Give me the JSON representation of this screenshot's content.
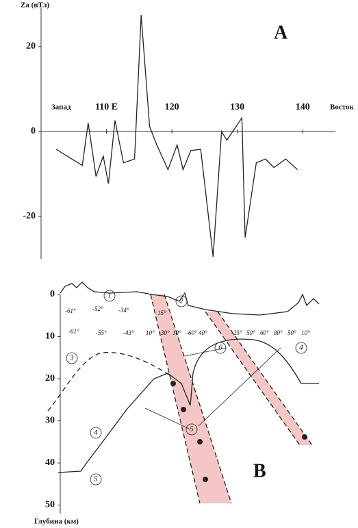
{
  "chart_data": [
    {
      "type": "line",
      "panel": "A",
      "y_label": "Za (нТл)",
      "x_start_label": "Запад",
      "x_end_label": "Восток",
      "x": [
        102.3,
        104.7,
        106.3,
        107.2,
        108.4,
        109.5,
        110.3,
        111.3,
        112.6,
        114.3,
        115.3,
        116.6,
        117.7,
        119.4,
        120.8,
        121.7,
        122.9,
        124.4,
        126.3,
        127.6,
        128.4,
        130.7,
        131.2,
        132.9,
        134.3,
        135.6,
        137.4,
        139.2
      ],
      "values": [
        -4.2,
        -6.5,
        -8,
        2,
        -10.6,
        -5.8,
        -12.3,
        2.6,
        -7.4,
        -6.5,
        27.4,
        1.1,
        -3.2,
        -9,
        -3.2,
        -9,
        -4.5,
        -4.2,
        -29.5,
        0,
        -2.1,
        3.2,
        -25,
        -7.4,
        -6.5,
        -8.5,
        -6.5,
        -9
      ],
      "color": "#222",
      "xlim": [
        100,
        145
      ],
      "xticks": [
        {
          "value": 110,
          "label": "110 E"
        },
        120,
        130,
        140
      ],
      "ylim": [
        -30,
        29
      ],
      "yticks": [
        -20,
        0,
        20
      ]
    },
    {
      "type": "section",
      "panel": "B",
      "y_label": "Глубина (км)",
      "ylim": [
        0,
        52
      ],
      "yticks": [
        0,
        10,
        20,
        30,
        40,
        50
      ],
      "zone_labels": [
        "1",
        "2",
        "3",
        "4",
        "4",
        "5",
        "5",
        "6"
      ],
      "angle_labels": [
        "-61°",
        "-52°",
        "-34°",
        "15°",
        "-61°",
        "-55°",
        "-43°",
        "10°",
        "-30°",
        "10°",
        "-60°",
        "40°",
        "-25°",
        "50°",
        "60°",
        "80°",
        "50°",
        "10°"
      ]
    }
  ]
}
